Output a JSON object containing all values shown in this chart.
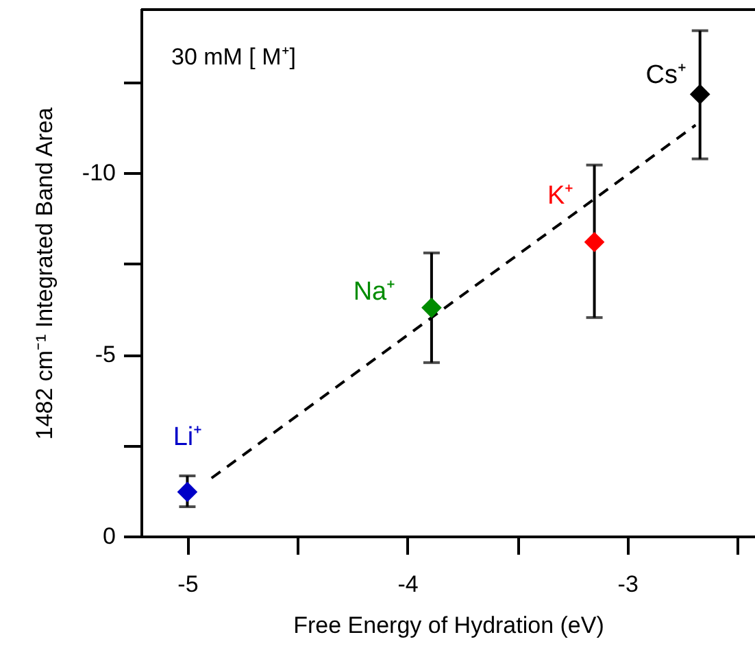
{
  "chart_data": {
    "type": "scatter",
    "xlabel": "Free Energy of Hydration (eV)",
    "ylabel": "1482 cm⁻¹ Integrated Band Area",
    "annotations": [
      "30 mM [ M⁺]"
    ],
    "marker": "diamond",
    "xlim": [
      -5.21,
      -2.42
    ],
    "xticks": [
      -5,
      {
        "value": -4.5,
        "label": null
      },
      -4,
      {
        "value": -3.5,
        "label": null
      },
      -3,
      {
        "value": -2.5,
        "label": null
      }
    ],
    "ylim": [
      0,
      -14.5
    ],
    "yticks": [
      0,
      {
        "value": -2.5,
        "label": null
      },
      -5,
      {
        "value": -7.5,
        "label": null
      },
      -10,
      {
        "value": -12.5,
        "label": null
      }
    ],
    "series": [
      {
        "type": "line",
        "color": "#000000",
        "line_style": "dashed",
        "marker": "none",
        "x": [
          -4.89,
          -2.69
        ],
        "values": [
          -1.6,
          -11.32
        ]
      },
      {
        "name": "Li⁺",
        "color": "#0000c8",
        "x": [
          -5.0
        ],
        "values": [
          -1.22
        ],
        "errors": [
          [
            -1.66,
            -0.81
          ]
        ]
      },
      {
        "name": "Na⁺",
        "color": "#008c00",
        "x": [
          -3.89
        ],
        "values": [
          -6.29
        ],
        "errors": [
          [
            -7.8,
            -4.78
          ]
        ]
      },
      {
        "name": "K⁺",
        "color": "#ff0000",
        "x": [
          -3.15
        ],
        "values": [
          -8.1
        ],
        "errors": [
          [
            -10.22,
            -6.02
          ]
        ]
      },
      {
        "name": "Cs⁺",
        "color": "#000000",
        "x": [
          -2.67
        ],
        "values": [
          -12.17
        ],
        "errors": [
          [
            -13.92,
            -10.39
          ]
        ]
      }
    ]
  }
}
